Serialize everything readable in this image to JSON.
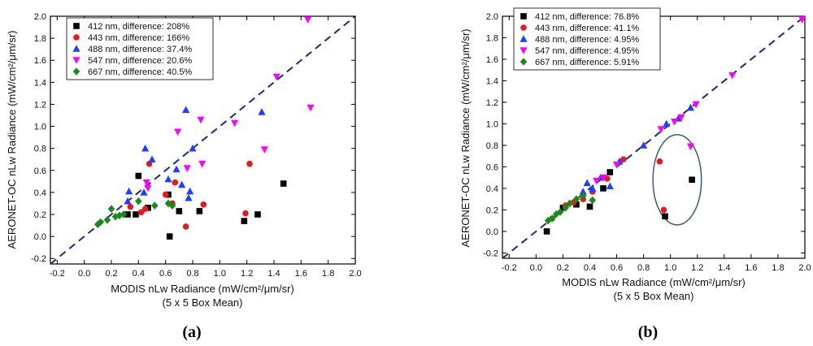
{
  "chart_data": [
    {
      "type": "scatter",
      "panel_label": "(a)",
      "xlabel": "MODIS nLw Radiance (mW/cm²/μm/sr)",
      "xlabel_sub": "(5 x 5 Box Mean)",
      "ylabel": "AERONET-OC nLw Radiance (mW/cm²/μm/sr)",
      "xlim": [
        -0.25,
        2.0
      ],
      "ylim": [
        -0.25,
        2.0
      ],
      "x_ticks": [
        -0.2,
        0.0,
        0.2,
        0.4,
        0.6,
        0.8,
        1.0,
        1.2,
        1.4,
        1.6,
        1.8,
        2.0
      ],
      "x_tick_labels": [
        "-0.2",
        "0.0",
        "0.2",
        "0.4",
        "0.6",
        "0.8",
        "1.0",
        "1.2",
        "1.4",
        "1.6",
        "1.8",
        "2.0"
      ],
      "y_ticks": [
        -0.2,
        0.0,
        0.2,
        0.4,
        0.6,
        0.8,
        1.0,
        1.2,
        1.4,
        1.6,
        1.8,
        2.0
      ],
      "y_tick_labels": [
        "-0.2",
        "0.0",
        "0.2",
        "0.4",
        "0.6",
        "0.8",
        "1.0",
        "1.2",
        "1.4",
        "1.6",
        "1.8",
        "2.0"
      ],
      "one_to_one_line": true,
      "legend_position": "top-left",
      "series": [
        {
          "name": "412 nm, difference: 208%",
          "marker": "square",
          "color": "#000000",
          "x": [
            0.32,
            0.38,
            0.4,
            0.47,
            0.62,
            0.63,
            0.7,
            0.85,
            1.18,
            1.28,
            1.47
          ],
          "y": [
            0.2,
            0.2,
            0.55,
            0.26,
            0.38,
            0.0,
            0.23,
            0.23,
            0.14,
            0.2,
            0.48
          ]
        },
        {
          "name": "443 nm, difference: 166%",
          "marker": "circle",
          "color": "#e41a1c",
          "x": [
            0.34,
            0.42,
            0.45,
            0.48,
            0.6,
            0.65,
            0.67,
            0.75,
            0.88,
            1.19,
            1.22
          ],
          "y": [
            0.27,
            0.22,
            0.25,
            0.66,
            0.38,
            0.3,
            0.49,
            0.09,
            0.29,
            0.21,
            0.66
          ]
        },
        {
          "name": "488 nm, difference: 37.4%",
          "marker": "triangle-up",
          "color": "#1f3fff",
          "x": [
            0.32,
            0.33,
            0.44,
            0.45,
            0.5,
            0.62,
            0.68,
            0.72,
            0.75,
            0.77,
            0.78,
            0.8,
            1.31
          ],
          "y": [
            0.32,
            0.41,
            0.4,
            0.8,
            0.7,
            0.52,
            0.61,
            0.47,
            1.15,
            0.35,
            0.41,
            0.8,
            1.13
          ]
        },
        {
          "name": "547 nm, difference: 20.6%",
          "marker": "triangle-down",
          "color": "#ff00ff",
          "x": [
            0.46,
            0.47,
            0.69,
            0.76,
            0.86,
            0.87,
            1.11,
            1.33,
            1.42,
            1.65,
            1.67
          ],
          "y": [
            0.49,
            0.44,
            0.95,
            0.62,
            1.06,
            0.66,
            1.03,
            0.79,
            1.45,
            1.97,
            1.17
          ]
        },
        {
          "name": "667 nm, difference: 40.5%",
          "marker": "diamond",
          "color": "#1a8a1a",
          "x": [
            0.1,
            0.12,
            0.17,
            0.2,
            0.23,
            0.26,
            0.29,
            0.4,
            0.52,
            0.62,
            0.65
          ],
          "y": [
            0.11,
            0.13,
            0.15,
            0.25,
            0.18,
            0.19,
            0.2,
            0.32,
            0.28,
            0.3,
            0.28
          ]
        }
      ]
    },
    {
      "type": "scatter",
      "panel_label": "(b)",
      "xlabel": "MODIS nLw Radiance (mW/cm²/μm/sr)",
      "xlabel_sub": "(5 x 5 Box Mean)",
      "ylabel": "AERONET-OC nLw Radiance (mW/cm²/μm/sr)",
      "xlim": [
        -0.25,
        2.0
      ],
      "ylim": [
        -0.25,
        2.0
      ],
      "x_ticks": [
        -0.2,
        0.0,
        0.2,
        0.4,
        0.6,
        0.8,
        1.0,
        1.2,
        1.4,
        1.6,
        1.8,
        2.0
      ],
      "x_tick_labels": [
        "-0.2",
        "0.0",
        "0.2",
        "0.4",
        "0.6",
        "0.8",
        "1.0",
        "1.2",
        "1.4",
        "1.6",
        "1.8",
        "2.0"
      ],
      "y_ticks": [
        -0.2,
        0.0,
        0.2,
        0.4,
        0.6,
        0.8,
        1.0,
        1.2,
        1.4,
        1.6,
        1.8,
        2.0
      ],
      "y_tick_labels": [
        "-0.2",
        "0.0",
        "0.2",
        "0.4",
        "0.6",
        "0.8",
        "1.0",
        "1.2",
        "1.4",
        "1.6",
        "1.8",
        "2.0"
      ],
      "one_to_one_line": true,
      "legend_position": "top-left",
      "annotation": {
        "shape": "ellipse",
        "center": [
          1.05,
          0.48
        ],
        "radius": [
          0.18,
          0.42
        ]
      },
      "series": [
        {
          "name": "412 nm, difference: 76.8%",
          "marker": "square",
          "color": "#000000",
          "x": [
            0.08,
            0.2,
            0.3,
            0.4,
            0.5,
            0.55,
            0.96,
            1.16
          ],
          "y": [
            0.0,
            0.22,
            0.25,
            0.23,
            0.4,
            0.55,
            0.14,
            0.48
          ]
        },
        {
          "name": "443 nm, difference: 41.1%",
          "marker": "circle",
          "color": "#e41a1c",
          "x": [
            0.12,
            0.22,
            0.28,
            0.35,
            0.42,
            0.53,
            0.65,
            0.92,
            0.95
          ],
          "y": [
            0.12,
            0.24,
            0.27,
            0.3,
            0.37,
            0.49,
            0.67,
            0.65,
            0.2
          ]
        },
        {
          "name": "488 nm, difference: 4.95%",
          "marker": "triangle-up",
          "color": "#1f3fff",
          "x": [
            0.35,
            0.38,
            0.42,
            0.48,
            0.55,
            0.62,
            0.8,
            0.97,
            1.06,
            1.15
          ],
          "y": [
            0.37,
            0.45,
            0.4,
            0.5,
            0.42,
            0.65,
            0.8,
            1.0,
            1.05,
            1.15
          ]
        },
        {
          "name": "547 nm, difference: 4.95%",
          "marker": "triangle-down",
          "color": "#ff00ff",
          "x": [
            0.45,
            0.5,
            0.6,
            0.93,
            1.03,
            1.08,
            1.15,
            1.19,
            1.46,
            1.98
          ],
          "y": [
            0.47,
            0.5,
            0.62,
            0.95,
            1.02,
            1.06,
            0.79,
            1.18,
            1.45,
            1.97
          ]
        },
        {
          "name": "667 nm, difference: 5.91%",
          "marker": "diamond",
          "color": "#1a8a1a",
          "x": [
            0.09,
            0.12,
            0.15,
            0.18,
            0.22,
            0.25,
            0.3,
            0.35,
            0.42
          ],
          "y": [
            0.1,
            0.12,
            0.16,
            0.18,
            0.22,
            0.26,
            0.3,
            0.33,
            0.29
          ]
        }
      ]
    }
  ]
}
